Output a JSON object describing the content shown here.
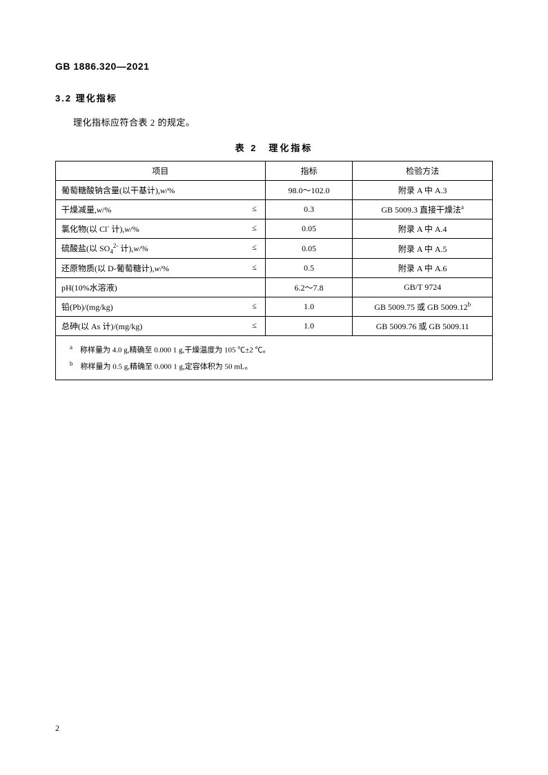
{
  "header": {
    "standard_code": "GB 1886.320—2021"
  },
  "section": {
    "number": "3.2",
    "title": "理化指标",
    "body_text": "理化指标应符合表 2 的规定。"
  },
  "table": {
    "caption": "表 2　理化指标",
    "headers": {
      "item": "项目",
      "index": "指标",
      "method": "检验方法"
    },
    "rows": [
      {
        "item_html": "葡萄糖酸钠含量(以干基计),<span class='italic'>w</span>/%",
        "leq": "",
        "index": "98.0～102.0",
        "method": "附录 A 中 A.3"
      },
      {
        "item_html": "干燥减量,<span class='italic'>w</span>/%",
        "leq": "≤",
        "index": "0.3",
        "method": "GB 5009.3 直接干燥法<span class='superscript'>a</span>"
      },
      {
        "item_html": "氯化物(以 Cl<span class='superscript'>-</span> 计),<span class='italic'>w</span>/%",
        "leq": "≤",
        "index": "0.05",
        "method": "附录 A 中 A.4"
      },
      {
        "item_html": "硫酸盐(以 SO<span class='subscript'>4</span><span class='superscript'>2-</span> 计),<span class='italic'>w</span>/%",
        "leq": "≤",
        "index": "0.05",
        "method": "附录 A 中 A.5"
      },
      {
        "item_html": "还原物质(以 D-葡萄糖计),<span class='italic'>w</span>/%",
        "leq": "≤",
        "index": "0.5",
        "method": "附录 A 中 A.6"
      },
      {
        "item_html": "pH(10%水溶液)",
        "leq": "",
        "index": "6.2～7.8",
        "method": "GB/T 9724"
      },
      {
        "item_html": "铅(Pb)/(mg/kg)",
        "leq": "≤",
        "index": "1.0",
        "method": "GB 5009.75 或 GB 5009.12<span class='superscript'>b</span>"
      },
      {
        "item_html": "总砷(以 As 计)/(mg/kg)",
        "leq": "≤",
        "index": "1.0",
        "method": "GB 5009.76 或 GB 5009.11"
      }
    ],
    "footnotes": [
      "<span class='superscript'>a</span>　称样量为 4.0 g,精确至 0.000 1 g,干燥温度为 105 ℃±2 ℃。",
      "<span class='superscript'>b</span>　称样量为 0.5 g,精确至 0.000 1 g,定容体积为 50 mL。"
    ]
  },
  "page_number": "2"
}
